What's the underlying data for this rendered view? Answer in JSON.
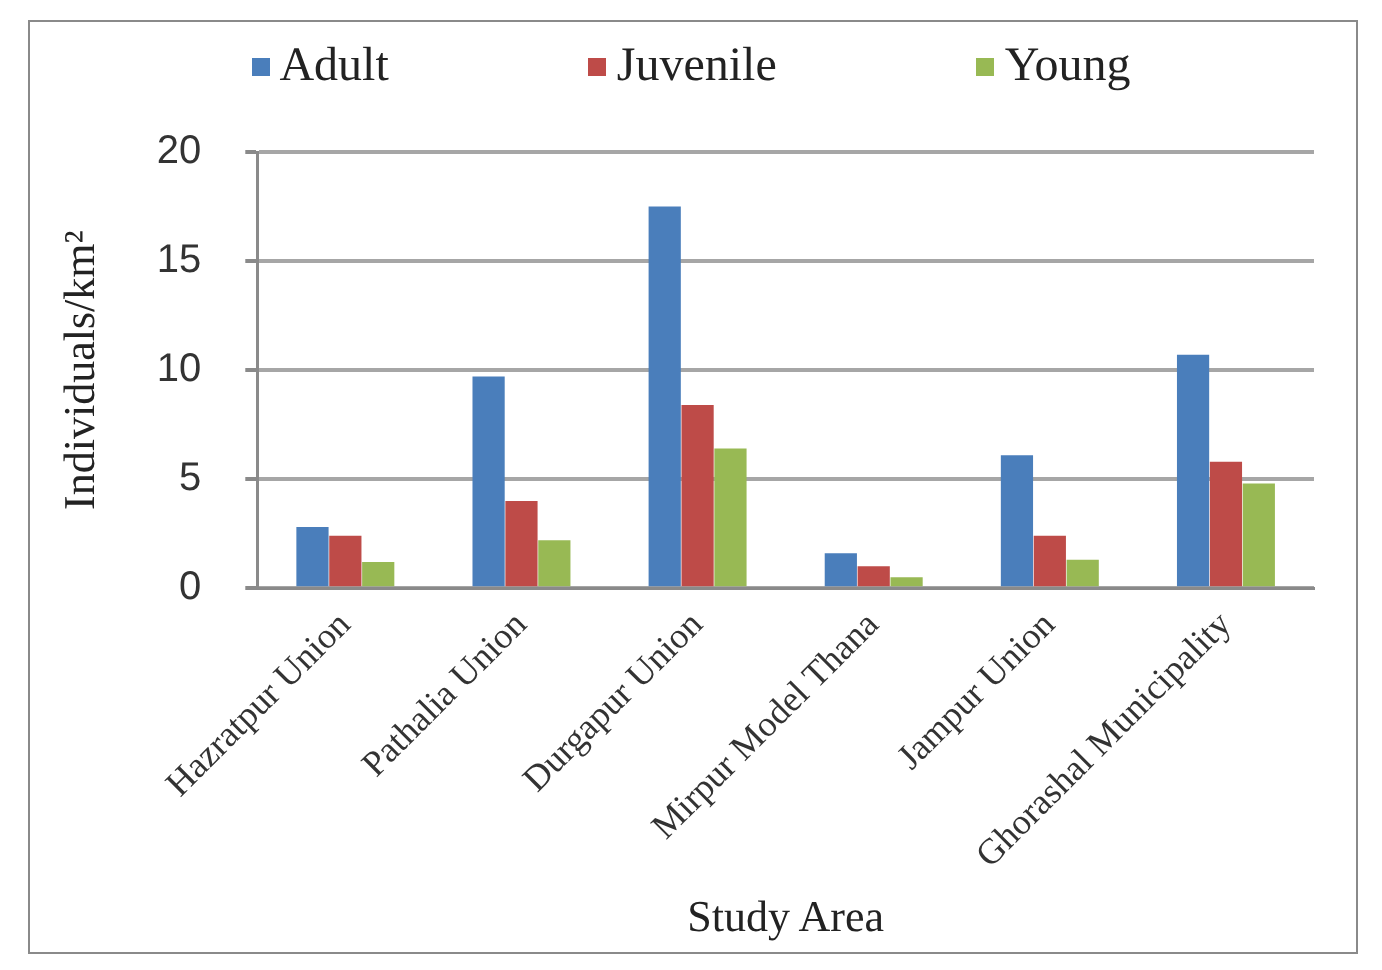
{
  "chart_data": {
    "type": "bar",
    "categories": [
      "Hazratpur Union",
      "Pathalia Union",
      "Durgapur Union",
      "Mirpur Model Thana",
      "Jampur Union",
      "Ghorashal Municipality"
    ],
    "series": [
      {
        "name": "Adult",
        "color": "#4a7ebb",
        "values": [
          2.8,
          9.7,
          17.5,
          1.6,
          6.1,
          10.7
        ]
      },
      {
        "name": "Juvenile",
        "color": "#be4b48",
        "values": [
          2.4,
          4.0,
          8.4,
          1.0,
          2.4,
          5.8
        ]
      },
      {
        "name": "Young",
        "color": "#98b954",
        "values": [
          1.2,
          2.2,
          6.4,
          0.5,
          1.3,
          4.8
        ]
      }
    ],
    "xlabel": "Study Area",
    "ylabel": "Individuals/km²",
    "ylim": [
      0,
      20
    ],
    "yticks": [
      0,
      5,
      10,
      15,
      20
    ],
    "grid": "y",
    "legend": "top"
  }
}
